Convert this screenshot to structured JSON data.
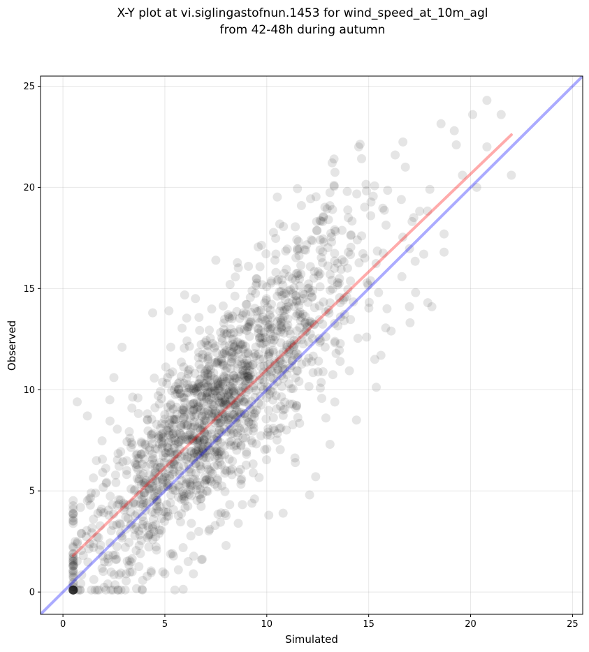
{
  "chart_data": {
    "type": "scatter",
    "title_line1": "X-Y plot at vi.siglingastofnun.1453 for wind_speed_at_10m_agl",
    "title_line2": "from 42-48h during autumn",
    "xlabel": "Simulated",
    "ylabel": "Observed",
    "xlim": [
      -1.1,
      25.5
    ],
    "ylim": [
      -1.1,
      25.5
    ],
    "xticks": [
      0,
      5,
      10,
      15,
      20,
      25
    ],
    "yticks": [
      0,
      5,
      10,
      15,
      20,
      25
    ],
    "grid": true,
    "point_color": "#000000",
    "point_alpha": 0.1,
    "identity_line": {
      "color": "#0000ff",
      "from": [
        -1.1,
        -1.1
      ],
      "to": [
        25.5,
        25.5
      ]
    },
    "fit_line": {
      "color": "#ff0000",
      "from": [
        0.5,
        1.8
      ],
      "to": [
        22.0,
        22.6
      ]
    },
    "point_cloud": {
      "count": 1600,
      "center_x": 7.5,
      "center_y": 9.0,
      "spread": 3.5
    },
    "points": [
      [
        0.7,
        9.4
      ],
      [
        1.2,
        8.7
      ],
      [
        2.3,
        9.5
      ],
      [
        2.5,
        10.6
      ],
      [
        2.9,
        12.1
      ],
      [
        4.4,
        13.8
      ],
      [
        13.3,
        21.4
      ],
      [
        13.3,
        20.1
      ],
      [
        11.7,
        19.1
      ],
      [
        14.4,
        8.5
      ],
      [
        15.6,
        11.7
      ],
      [
        12.1,
        4.8
      ],
      [
        10.8,
        3.9
      ],
      [
        6.4,
        0.9
      ],
      [
        1.4,
        0.1
      ],
      [
        2.2,
        0.4
      ],
      [
        20.8,
        24.3
      ],
      [
        21.5,
        23.6
      ],
      [
        20.1,
        23.6
      ],
      [
        19.2,
        22.8
      ],
      [
        19.3,
        22.1
      ],
      [
        20.8,
        22.0
      ],
      [
        16.3,
        21.6
      ],
      [
        16.8,
        21.0
      ],
      [
        22.0,
        20.6
      ],
      [
        20.3,
        20.0
      ],
      [
        18.0,
        19.9
      ],
      [
        18.7,
        17.7
      ],
      [
        18.7,
        16.8
      ],
      [
        18.1,
        14.1
      ],
      [
        17.9,
        14.3
      ],
      [
        15.3,
        11.5
      ],
      [
        8.0,
        2.3
      ],
      [
        9.4,
        4.6
      ],
      [
        10.1,
        3.8
      ],
      [
        4.9,
        1.0
      ],
      [
        5.0,
        0.9
      ],
      [
        12.4,
        5.7
      ],
      [
        13.1,
        7.3
      ],
      [
        16.6,
        19.4
      ],
      [
        19.6,
        20.6
      ],
      [
        17.7,
        16.7
      ],
      [
        5.2,
        13.9
      ],
      [
        6.5,
        14.5
      ],
      [
        7.5,
        16.4
      ],
      [
        8.2,
        15.2
      ],
      [
        9.1,
        16.1
      ],
      [
        10.4,
        16.4
      ],
      [
        11.5,
        16.9
      ],
      [
        12.8,
        17.3
      ],
      [
        14.0,
        18.5
      ],
      [
        15.1,
        18.6
      ],
      [
        3.8,
        1.9
      ],
      [
        3.1,
        0.9
      ],
      [
        2.6,
        1.6
      ],
      [
        1.0,
        1.8
      ],
      [
        0.9,
        2.9
      ],
      [
        0.6,
        2.5
      ],
      [
        1.5,
        3.6
      ],
      [
        6.8,
        1.6
      ],
      [
        7.2,
        3.1
      ],
      [
        8.6,
        3.4
      ],
      [
        11.4,
        6.4
      ],
      [
        12.9,
        8.6
      ],
      [
        13.6,
        11.4
      ],
      [
        14.9,
        12.6
      ],
      [
        16.1,
        12.9
      ],
      [
        17.0,
        14.1
      ],
      [
        17.3,
        14.8
      ],
      [
        15.9,
        14.0
      ]
    ]
  }
}
